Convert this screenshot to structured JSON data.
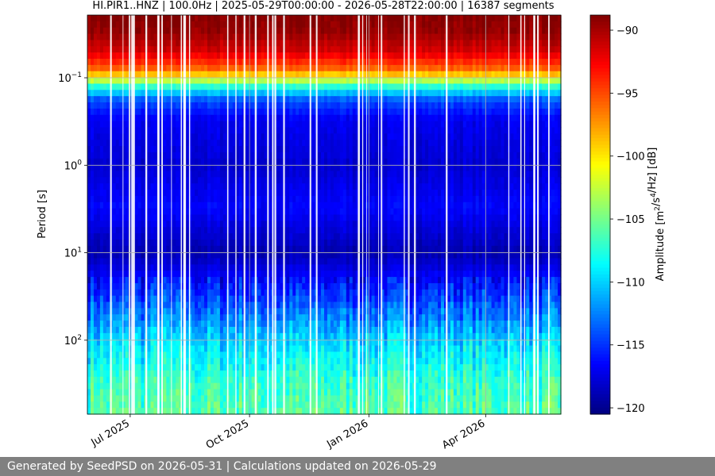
{
  "chart_data": {
    "type": "heatmap",
    "title": "HI.PIR1..HNZ | 100.0Hz | 2025-05-29T00:00:00 - 2026-05-28T22:00:00 | 16387 segments",
    "ylabel": "Period [s]",
    "y_scale": "log",
    "y_inverted": true,
    "y_ticks": [
      {
        "value": 0.1,
        "label": "10^{-1}"
      },
      {
        "value": 1,
        "label": "10^{0}"
      },
      {
        "value": 10,
        "label": "10^{1}"
      },
      {
        "value": 100,
        "label": "10^{2}"
      }
    ],
    "x_range": [
      "2025-05-29",
      "2026-05-29"
    ],
    "x_ticks": [
      {
        "value": "2025-07-01",
        "label": "Jul 2025"
      },
      {
        "value": "2025-10-01",
        "label": "Oct 2025"
      },
      {
        "value": "2026-01-01",
        "label": "Jan 2026"
      },
      {
        "value": "2026-04-01",
        "label": "Apr 2026"
      }
    ],
    "grid": true,
    "colormap": "jet",
    "colorbar": {
      "label": "Amplitude [m^2/s^4/Hz] [dB]",
      "range": [
        -120.5,
        -88.8
      ],
      "ticks": [
        -90,
        -95,
        -100,
        -105,
        -110,
        -115,
        -120
      ]
    },
    "period_profile": [
      {
        "period": 0.02,
        "db": -89
      },
      {
        "period": 0.03,
        "db": -89.5
      },
      {
        "period": 0.05,
        "db": -91.5
      },
      {
        "period": 0.08,
        "db": -96
      },
      {
        "period": 0.1,
        "db": -101
      },
      {
        "period": 0.13,
        "db": -108
      },
      {
        "period": 0.18,
        "db": -114
      },
      {
        "period": 0.3,
        "db": -117
      },
      {
        "period": 1,
        "db": -118
      },
      {
        "period": 3,
        "db": -116.5
      },
      {
        "period": 10,
        "db": -119
      },
      {
        "period": 30,
        "db": -115
      },
      {
        "period": 100,
        "db": -110
      },
      {
        "period": 300,
        "db": -107
      },
      {
        "period": 700,
        "db": -106
      }
    ]
  },
  "footer": {
    "text": "Generated by SeedPSD on 2026-05-31 | Calculations updated on 2026-05-29"
  }
}
